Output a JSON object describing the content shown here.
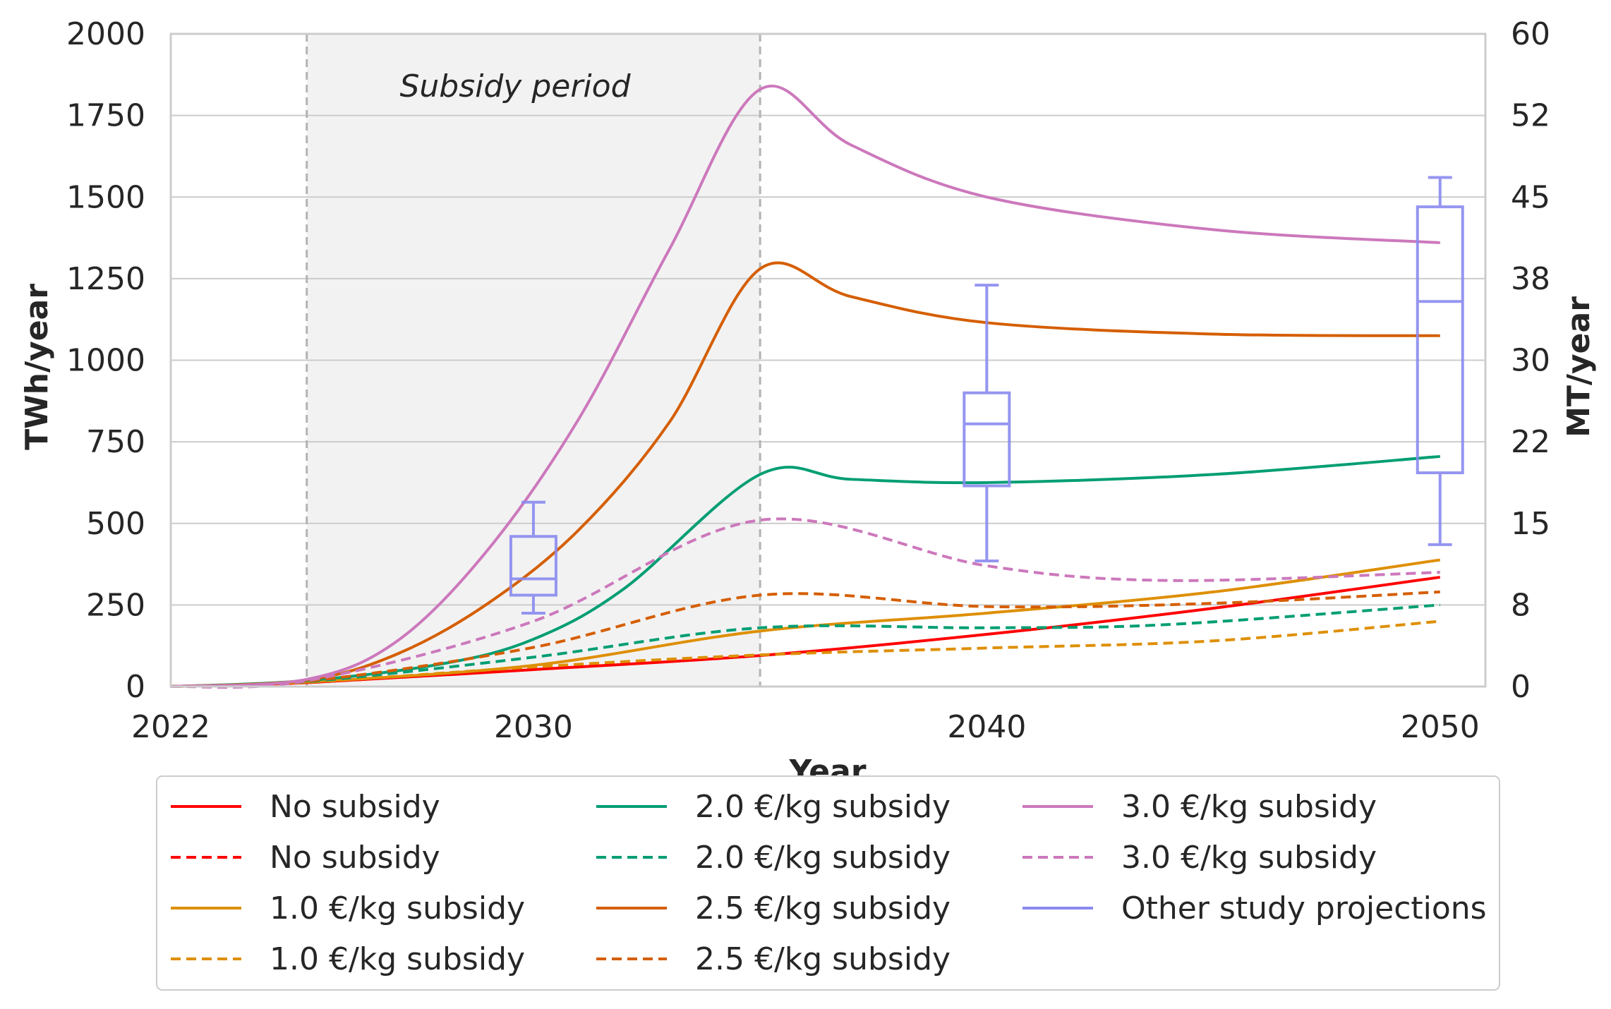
{
  "chart_data": {
    "type": "line",
    "xlabel": "Year",
    "ylabel": "TWh/year",
    "y2label": "MT/year",
    "xlim": [
      2022,
      2051
    ],
    "ylim": [
      0,
      2000
    ],
    "y2lim": [
      0,
      60
    ],
    "xticks": [
      "2022",
      "2030",
      "2040",
      "2050"
    ],
    "yticks": [
      "0",
      "250",
      "500",
      "750",
      "1000",
      "1250",
      "1500",
      "1750",
      "2000"
    ],
    "y2ticks": [
      "0",
      "8",
      "15",
      "22",
      "30",
      "38",
      "45",
      "52",
      "60"
    ],
    "grid": "horizontal",
    "subsidy_period": {
      "label": "Subsidy period",
      "start": 2025,
      "end": 2035
    },
    "legend_position": "below",
    "series": [
      {
        "name": "No subsidy",
        "color": "#ff0000",
        "style": "solid",
        "x": [
          2022,
          2025,
          2030,
          2035,
          2040,
          2045,
          2050
        ],
        "y": [
          0,
          12,
          52,
          95,
          160,
          240,
          335
        ]
      },
      {
        "name": "No subsidy",
        "color": "#ff0000",
        "style": "dashed",
        "x": [
          2022,
          2025,
          2030,
          2035
        ],
        "y": [
          0,
          12,
          55,
          95
        ]
      },
      {
        "name": "1.0 €/kg subsidy",
        "color": "#de8f05",
        "style": "solid",
        "x": [
          2022,
          2025,
          2030,
          2035,
          2040,
          2045,
          2050
        ],
        "y": [
          0,
          14,
          65,
          170,
          225,
          290,
          388
        ]
      },
      {
        "name": "1.0 €/kg subsidy",
        "color": "#de8f05",
        "style": "dashed",
        "x": [
          2022,
          2025,
          2030,
          2035,
          2040,
          2045,
          2050
        ],
        "y": [
          0,
          13,
          60,
          97,
          118,
          140,
          200
        ]
      },
      {
        "name": "2.0 €/kg subsidy",
        "color": "#029e73",
        "style": "solid",
        "x": [
          2022,
          2025,
          2028,
          2030,
          2032,
          2035,
          2037,
          2040,
          2045,
          2050
        ],
        "y": [
          0,
          18,
          70,
          145,
          300,
          650,
          635,
          625,
          650,
          705
        ]
      },
      {
        "name": "2.0 €/kg subsidy",
        "color": "#029e73",
        "style": "dashed",
        "x": [
          2022,
          2025,
          2030,
          2035,
          2040,
          2044,
          2050
        ],
        "y": [
          0,
          15,
          90,
          180,
          180,
          190,
          250
        ]
      },
      {
        "name": "2.5 €/kg subsidy",
        "color": "#d55e00",
        "style": "solid",
        "x": [
          2022,
          2025,
          2027,
          2029,
          2031,
          2033,
          2035,
          2037,
          2040,
          2045,
          2050
        ],
        "y": [
          0,
          20,
          100,
          255,
          480,
          810,
          1280,
          1195,
          1115,
          1080,
          1075
        ]
      },
      {
        "name": "2.5 €/kg subsidy",
        "color": "#d55e00",
        "style": "dashed",
        "x": [
          2022,
          2025,
          2030,
          2035,
          2040,
          2045,
          2050
        ],
        "y": [
          0,
          16,
          120,
          280,
          245,
          255,
          290
        ]
      },
      {
        "name": "3.0 €/kg subsidy",
        "color": "#cc78bc",
        "style": "solid",
        "x": [
          2022,
          2025,
          2027,
          2029,
          2031,
          2033,
          2035,
          2037,
          2040,
          2045,
          2050
        ],
        "y": [
          0,
          22,
          140,
          420,
          820,
          1340,
          1830,
          1660,
          1500,
          1400,
          1360
        ]
      },
      {
        "name": "3.0 €/kg subsidy",
        "color": "#cc78bc",
        "style": "dashed",
        "x": [
          2022,
          2025,
          2030,
          2035,
          2040,
          2044,
          2050
        ],
        "y": [
          0,
          18,
          200,
          510,
          370,
          325,
          350
        ]
      }
    ],
    "boxplots": {
      "name": "Other study projections",
      "color": "#8a8af0",
      "boxes": [
        {
          "x": 2030,
          "whisker_low": 225,
          "q1": 280,
          "median": 330,
          "q3": 460,
          "whisker_high": 565
        },
        {
          "x": 2040,
          "whisker_low": 385,
          "q1": 615,
          "median": 805,
          "q3": 900,
          "whisker_high": 1230
        },
        {
          "x": 2050,
          "whisker_low": 435,
          "q1": 655,
          "median": 1180,
          "q3": 1470,
          "whisker_high": 1560
        }
      ]
    }
  }
}
